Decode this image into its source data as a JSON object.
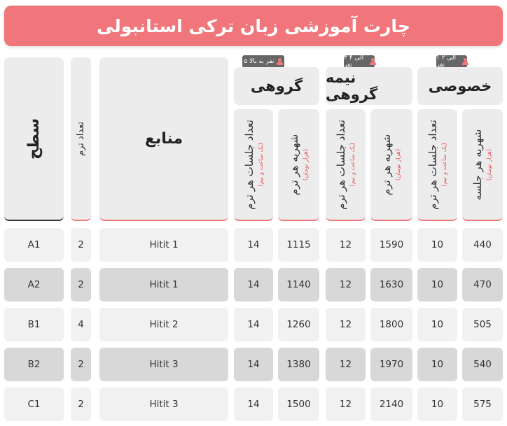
{
  "title": "چارت آموزشی زبان ترکی استانبولی",
  "groups": {
    "private": {
      "title": "خصوصی",
      "badge": "۱ الی ۲ نفر"
    },
    "semi": {
      "title": "نیمه گروهی",
      "badge": "۳ الی ۴ نفر"
    },
    "group": {
      "title": "گروهی",
      "badge": "۵ نفر به بالا"
    }
  },
  "sub_headers": {
    "price_session": "شهریه هر جلسه",
    "price_term": "شهریه هر ترم",
    "sessions_term": "تعداد جلسات هر ترم",
    "unit_price": "(هزار تومان)",
    "unit_session": "(یک ساعت و نیم)"
  },
  "headers": {
    "resources": "منابع",
    "terms_count": "تعداد ترم",
    "level": "سطح"
  },
  "rows": [
    {
      "level": "A1",
      "terms": "2",
      "resource": "Hitit 1",
      "g_sessions": "14",
      "g_price": "1115",
      "s_sessions": "12",
      "s_price": "1590",
      "p_sessions": "10",
      "p_price": "440"
    },
    {
      "level": "A2",
      "terms": "2",
      "resource": "Hitit 1",
      "g_sessions": "14",
      "g_price": "1140",
      "s_sessions": "12",
      "s_price": "1630",
      "p_sessions": "10",
      "p_price": "470"
    },
    {
      "level": "B1",
      "terms": "4",
      "resource": "Hitit 2",
      "g_sessions": "14",
      "g_price": "1260",
      "s_sessions": "12",
      "s_price": "1800",
      "p_sessions": "10",
      "p_price": "505"
    },
    {
      "level": "B2",
      "terms": "2",
      "resource": "Hitit 3",
      "g_sessions": "14",
      "g_price": "1380",
      "s_sessions": "12",
      "s_price": "1970",
      "p_sessions": "10",
      "p_price": "540"
    },
    {
      "level": "C1",
      "terms": "2",
      "resource": "Hitit 3",
      "g_sessions": "14",
      "g_price": "1500",
      "s_sessions": "12",
      "s_price": "2140",
      "p_sessions": "10",
      "p_price": "575"
    }
  ],
  "colors": {
    "accent": "#f0767b",
    "cell": "#f1f1f1",
    "cell_alt": "#d8d8d8",
    "badge": "#666666"
  }
}
